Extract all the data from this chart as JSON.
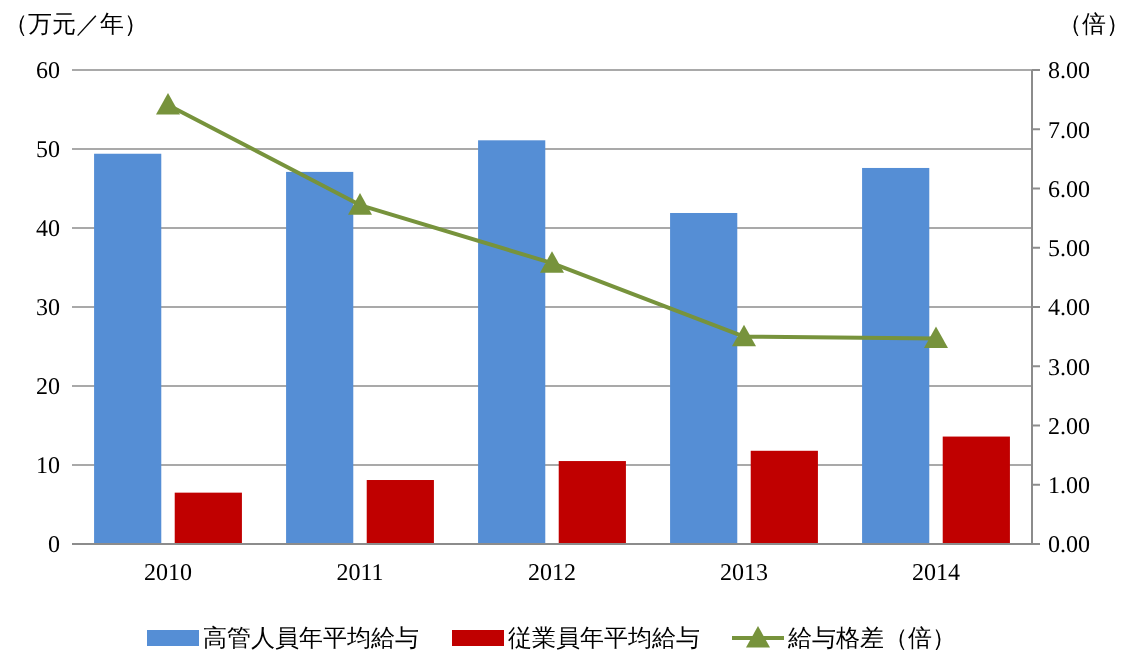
{
  "chart_data": {
    "type": "bar",
    "ylabel": "（万元／年）",
    "y2label": "（倍）",
    "categories": [
      "2010",
      "2011",
      "2012",
      "2013",
      "2014"
    ],
    "series": [
      {
        "name": "高管人員年平均給与",
        "color": "#558ed5",
        "values": [
          49.4,
          47.1,
          51.1,
          41.9,
          47.6
        ]
      },
      {
        "name": "従業員年平均給与",
        "color": "#c00000",
        "values": [
          6.5,
          8.1,
          10.5,
          11.8,
          13.6
        ]
      },
      {
        "name": "給与格差（倍）",
        "type": "line",
        "axis": "y2",
        "color": "#77933c",
        "marker": "triangle",
        "values": [
          7.41,
          5.72,
          4.74,
          3.5,
          3.47
        ]
      }
    ],
    "ylim": [
      0,
      60
    ],
    "yticks": [
      0,
      10,
      20,
      30,
      40,
      50,
      60
    ],
    "y2lim": [
      0,
      8
    ],
    "y2ticks": [
      {
        "value": 0,
        "label": "0.00"
      },
      {
        "value": 1,
        "label": "1.00"
      },
      {
        "value": 2,
        "label": "2.00"
      },
      {
        "value": 3,
        "label": "3.00"
      },
      {
        "value": 4,
        "label": "4.00"
      },
      {
        "value": 5,
        "label": "5.00"
      },
      {
        "value": 6,
        "label": "6.00"
      },
      {
        "value": 7,
        "label": "7.00"
      },
      {
        "value": 8,
        "label": "8.00"
      }
    ],
    "grid": "y",
    "legend": "bottom"
  }
}
